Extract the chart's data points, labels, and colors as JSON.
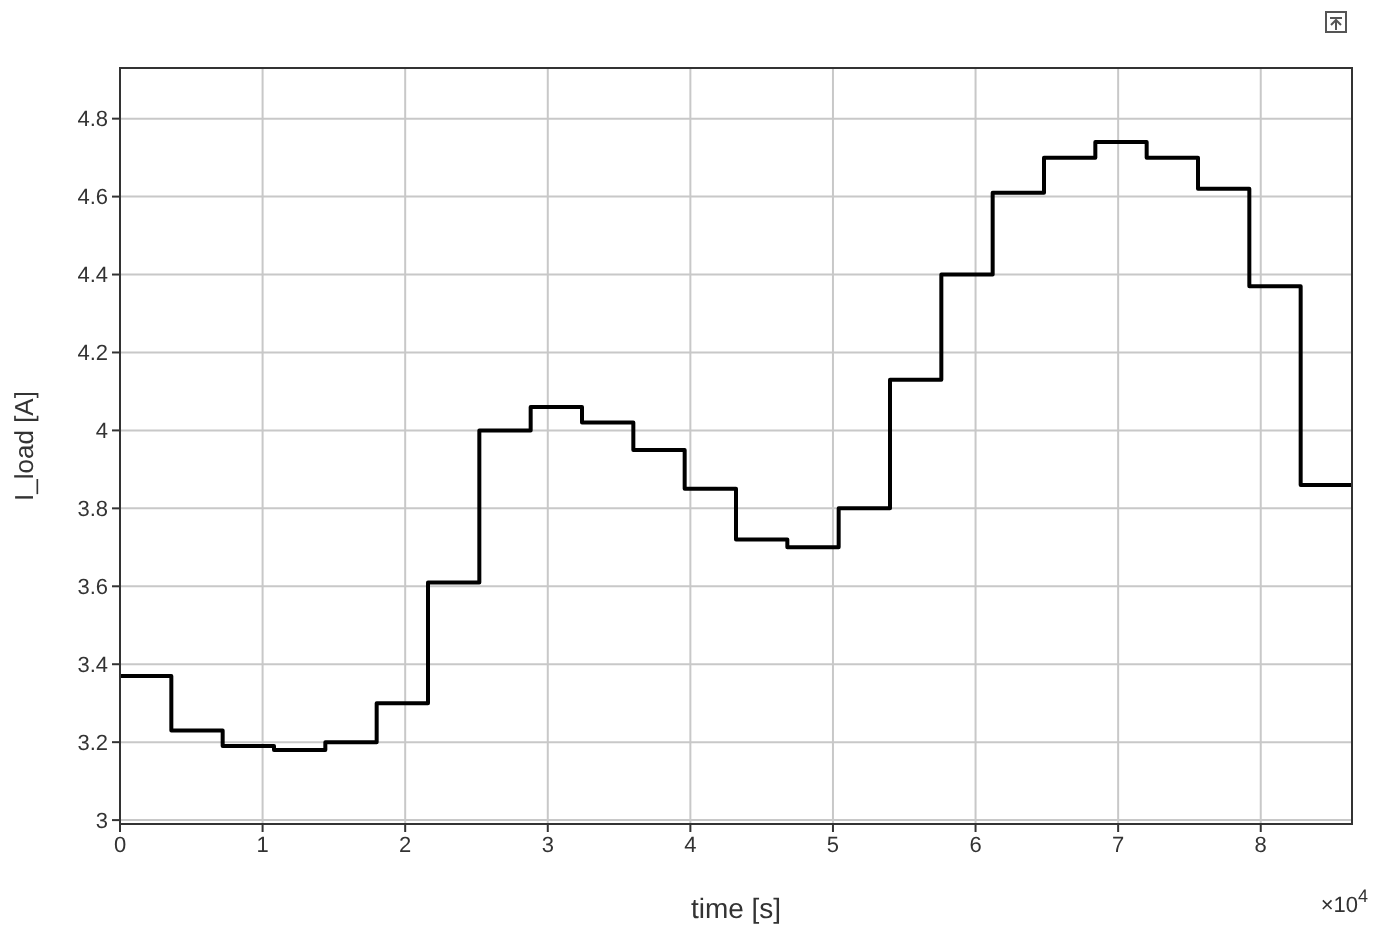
{
  "chart_data": {
    "type": "step",
    "xlabel": "time [s]",
    "ylabel": "I_load [A]",
    "x": [
      0,
      0.36,
      0.72,
      1.08,
      1.44,
      1.8,
      2.16,
      2.52,
      2.88,
      3.24,
      3.6,
      3.96,
      4.32,
      4.68,
      5.04,
      5.4,
      5.76,
      6.12,
      6.48,
      6.84,
      7.2,
      7.56,
      7.92,
      8.28,
      8.64
    ],
    "series": [
      {
        "color": "#000000",
        "values": [
          3.37,
          3.23,
          3.19,
          3.18,
          3.2,
          3.3,
          3.61,
          4.0,
          4.06,
          4.02,
          3.95,
          3.85,
          3.72,
          3.7,
          3.8,
          4.13,
          4.4,
          4.61,
          4.7,
          4.74,
          4.7,
          4.62,
          4.37,
          3.86,
          3.86
        ]
      }
    ],
    "xlim": [
      0,
      8.64
    ],
    "xticks": [
      0,
      1,
      2,
      3,
      4,
      5,
      6,
      7,
      8
    ],
    "ylim": [
      2.99,
      4.93
    ],
    "yticks": [
      3,
      3.2,
      3.4,
      3.6,
      3.8,
      4,
      4.2,
      4.4,
      4.6,
      4.8
    ],
    "grid": true,
    "marker": "none",
    "line_style": "solid",
    "annotations": [
      "×10$^{4}$"
    ]
  }
}
